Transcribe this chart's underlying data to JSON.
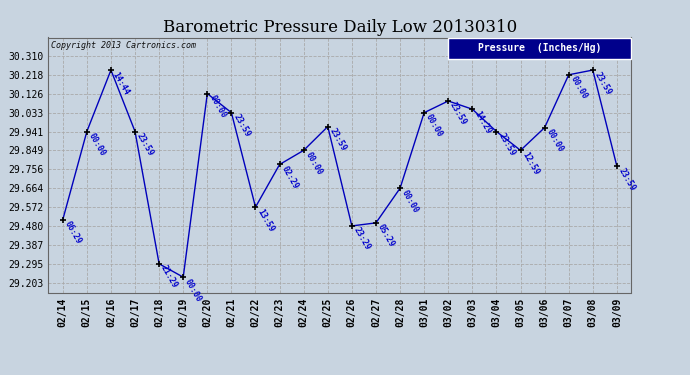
{
  "title": "Barometric Pressure Daily Low 20130310",
  "ylabel_legend": "Pressure  (Inches/Hg)",
  "copyright": "Copyright 2013 Cartronics.com",
  "bg_color": "#c8d4e0",
  "line_color": "#0000bb",
  "marker_color": "#000000",
  "text_color": "#0000cc",
  "ylim_min": 29.155,
  "ylim_max": 30.4,
  "yticks": [
    30.31,
    30.218,
    30.126,
    30.033,
    29.941,
    29.849,
    29.756,
    29.664,
    29.572,
    29.48,
    29.387,
    29.295,
    29.203
  ],
  "dates": [
    "02/14",
    "02/15",
    "02/16",
    "02/17",
    "02/18",
    "02/19",
    "02/20",
    "02/21",
    "02/22",
    "02/23",
    "02/24",
    "02/25",
    "02/26",
    "02/27",
    "02/28",
    "03/01",
    "03/02",
    "03/03",
    "03/04",
    "03/05",
    "03/06",
    "03/07",
    "03/08",
    "03/09"
  ],
  "y_values": [
    29.51,
    29.941,
    30.241,
    29.941,
    29.295,
    29.23,
    30.126,
    30.033,
    29.572,
    29.78,
    29.849,
    29.965,
    29.48,
    29.495,
    29.664,
    30.033,
    30.09,
    30.05,
    29.941,
    29.849,
    29.96,
    30.218,
    30.241,
    29.771
  ],
  "time_labels": [
    "06:29",
    "00:00",
    "14:44",
    "23:59",
    "21:29",
    "00:00",
    "00:00",
    "23:59",
    "13:59",
    "02:29",
    "00:00",
    "23:59",
    "23:29",
    "05:29",
    "00:00",
    "00:00",
    "23:59",
    "14:29",
    "23:59",
    "12:59",
    "00:00",
    "00:00",
    "23:59",
    "23:59"
  ],
  "title_fontsize": 12,
  "tick_fontsize": 7,
  "annot_fontsize": 6,
  "legend_bg_color": "#00008b",
  "legend_text_color": "#ffffff",
  "legend_fontsize": 7
}
